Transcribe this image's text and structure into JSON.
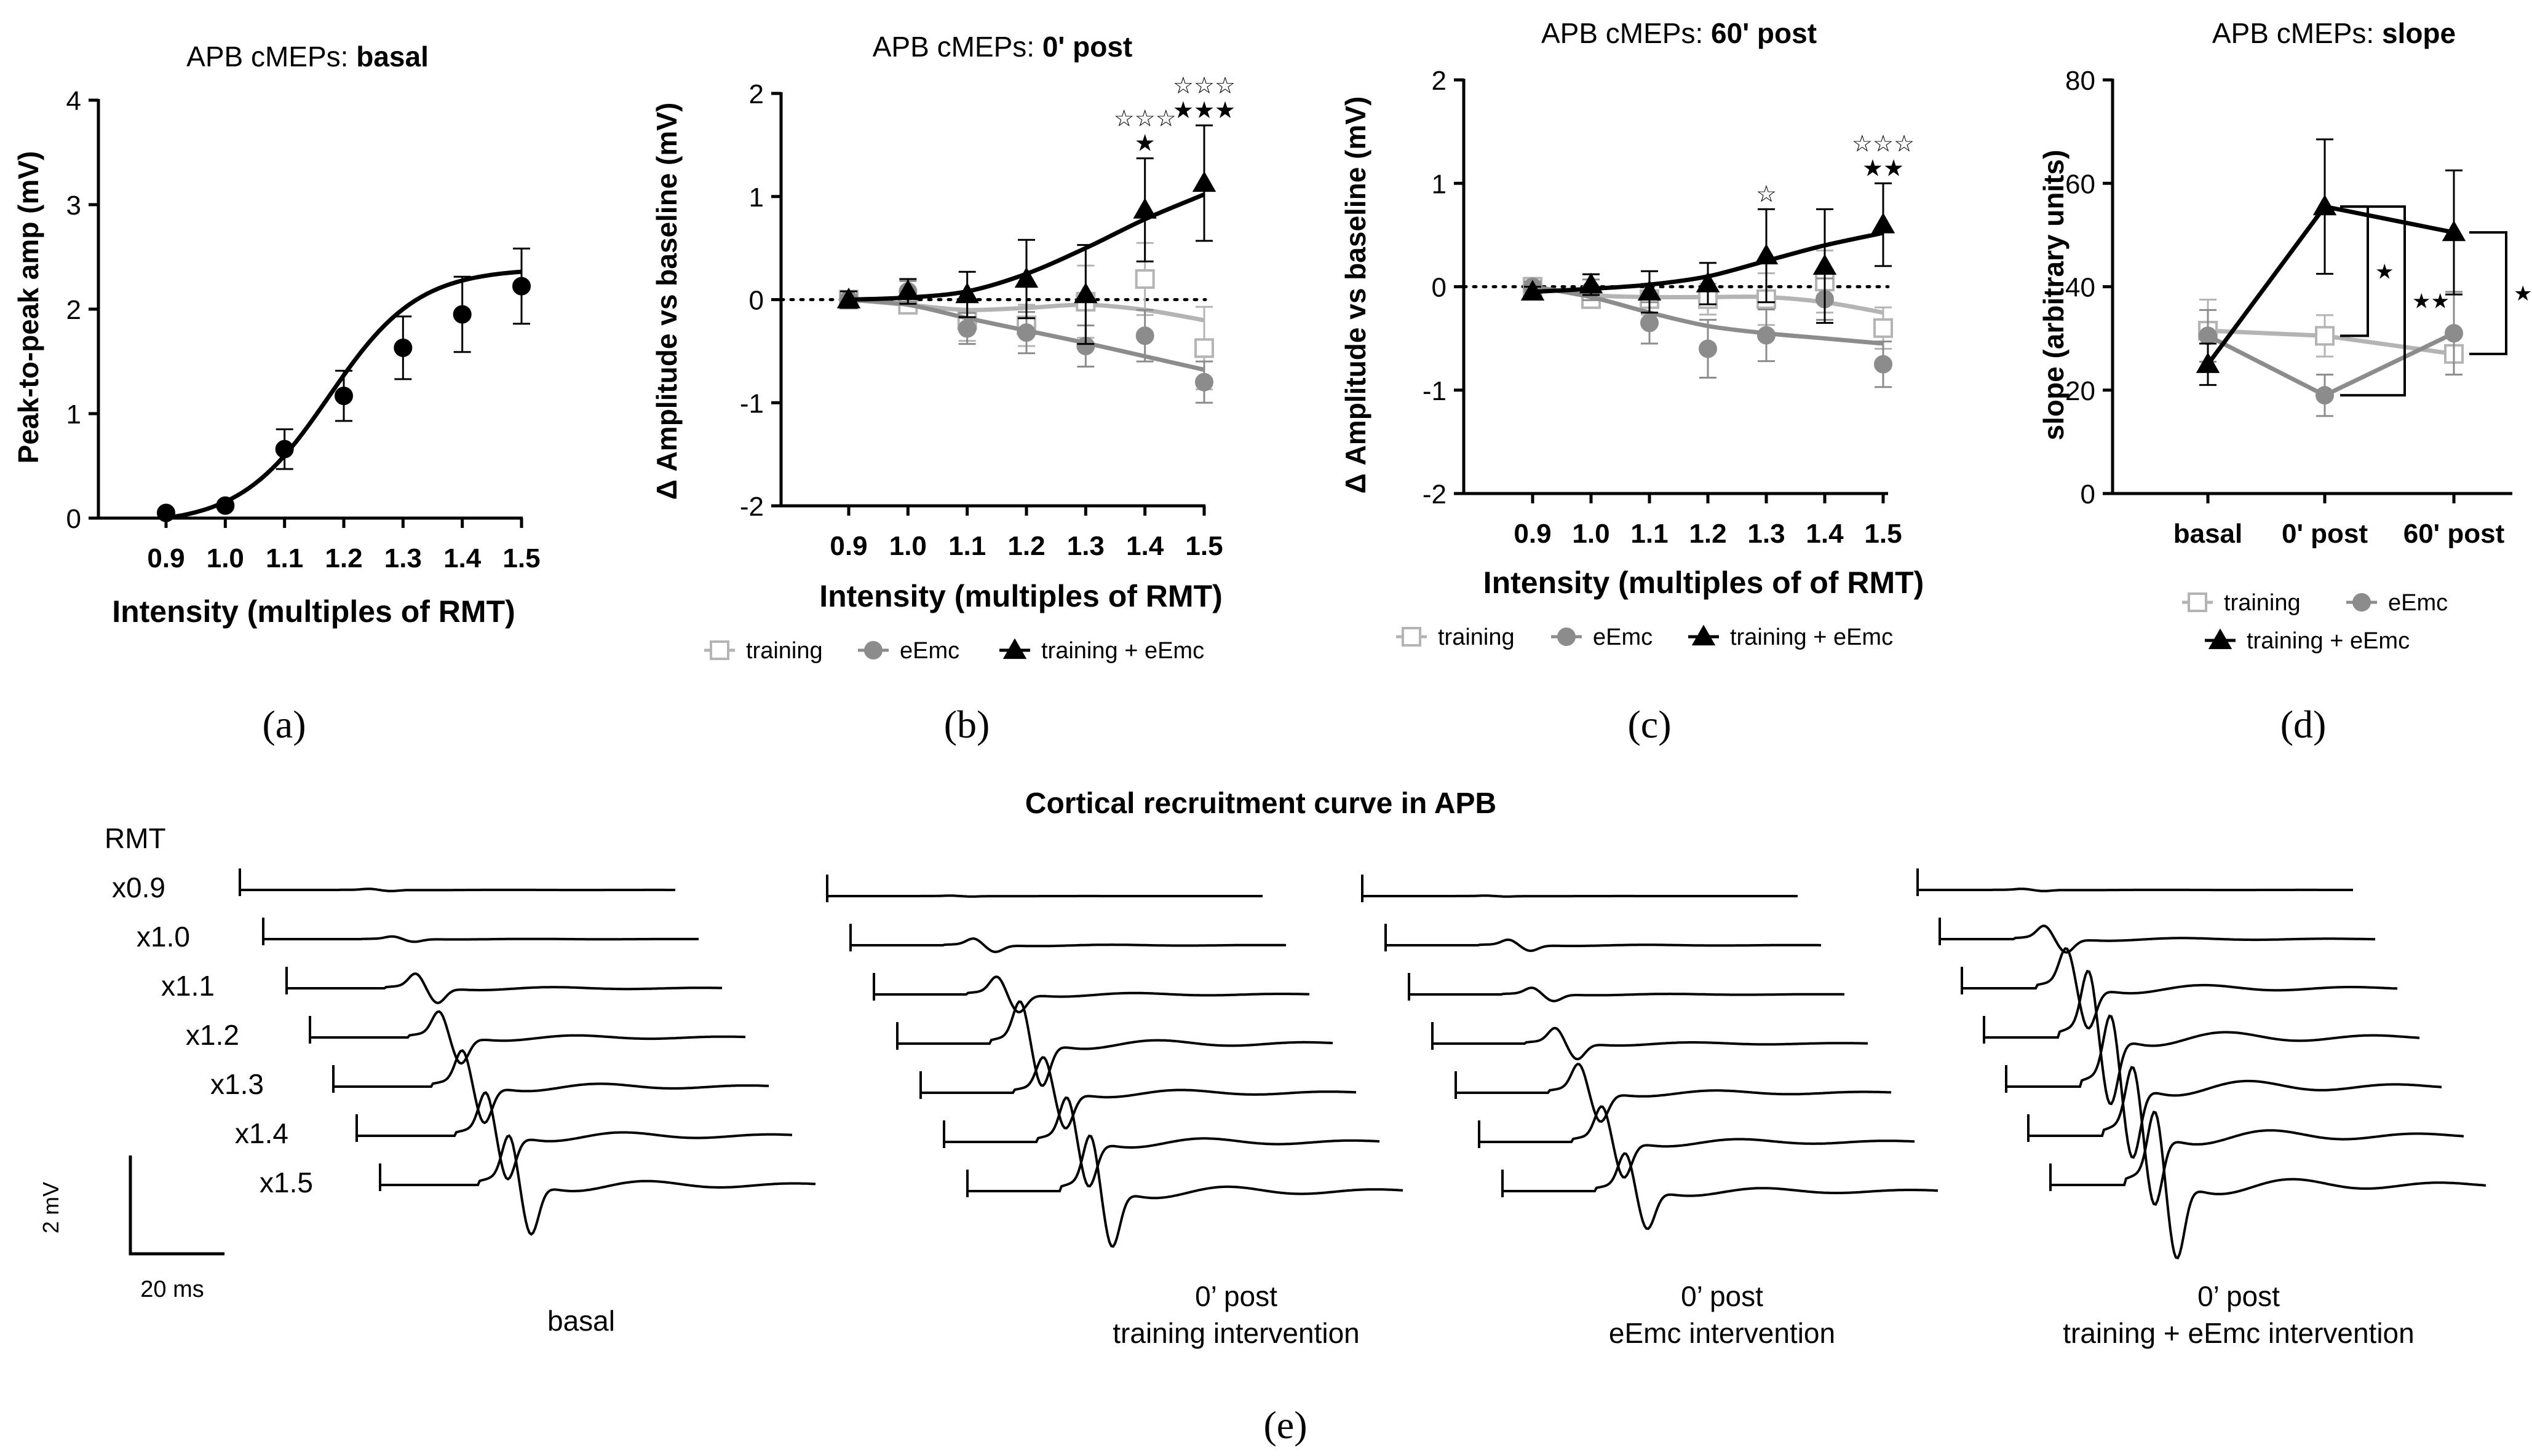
{
  "panels": {
    "a": {
      "label": "(a)",
      "title_prefix": "APB cMEPs: ",
      "title_bold": "basal",
      "xlabel": "Intensity (multiples of RMT)",
      "ylabel": "Peak-to-peak amp (mV)"
    },
    "b": {
      "label": "(b)",
      "title_prefix": "APB cMEPs: ",
      "title_bold": "0' post",
      "xlabel": "Intensity (multiples of RMT)",
      "ylabel": "Δ Amplitude vs baseline (mV)"
    },
    "c": {
      "label": "(c)",
      "title_prefix": "APB cMEPs: ",
      "title_bold": "60' post",
      "xlabel": "Intensity (multiples of of RMT)",
      "ylabel": "Δ Amplitude vs baseline (mV)"
    },
    "d": {
      "label": "(d)",
      "title_prefix": "APB cMEPs: ",
      "title_bold": "slope",
      "xlabel": "",
      "ylabel": "slope (arbitrary units)"
    },
    "e": {
      "label": "(e)",
      "title": "Cortical recruitment curve in APB",
      "rmt_label": "RMT",
      "intensity_labels": [
        "x0.9",
        "x1.0",
        "x1.1",
        "x1.2",
        "x1.3",
        "x1.4",
        "x1.5"
      ],
      "scale_v": "2 mV",
      "scale_t": "20 ms",
      "group_captions": [
        [
          "basal"
        ],
        [
          "0’ post",
          "training intervention"
        ],
        [
          "0’ post",
          "eEmc intervention"
        ],
        [
          "0’ post",
          "training + eEmc intervention"
        ]
      ],
      "group_peak_amplitudes_mV": [
        [
          0.05,
          0.12,
          0.66,
          1.17,
          1.63,
          1.95,
          2.22
        ],
        [
          0.02,
          0.3,
          0.8,
          1.9,
          1.6,
          2.0,
          2.5
        ],
        [
          0.02,
          0.25,
          0.3,
          0.7,
          1.3,
          1.6,
          1.7
        ],
        [
          0.05,
          0.6,
          1.8,
          3.0,
          3.2,
          3.1,
          3.3
        ]
      ]
    }
  },
  "chart_data": [
    {
      "id": "a",
      "type": "line",
      "x": [
        0.9,
        1.0,
        1.1,
        1.2,
        1.3,
        1.4,
        1.5
      ],
      "xtick_labels": [
        "0.9",
        "1.0",
        "1.1",
        "1.2",
        "1.3",
        "1.4",
        "1.5"
      ],
      "series": [
        {
          "marker": "filled-circle",
          "color": "#000000",
          "values": [
            0.05,
            0.12,
            0.66,
            1.17,
            1.63,
            1.95,
            2.22
          ],
          "errors": [
            0.0,
            0.0,
            0.19,
            0.24,
            0.3,
            0.36,
            0.36
          ]
        }
      ],
      "ylim": [
        0,
        4
      ],
      "yticks": [
        0,
        1,
        2,
        3,
        4
      ],
      "grid": false
    },
    {
      "id": "b",
      "type": "line",
      "x": [
        0.9,
        1.0,
        1.1,
        1.2,
        1.3,
        1.4,
        1.5
      ],
      "xtick_labels": [
        "0.9",
        "1.0",
        "1.1",
        "1.2",
        "1.3",
        "1.4",
        "1.5"
      ],
      "series": [
        {
          "name": "training",
          "marker": "open-square",
          "color": "#b4b4b4",
          "values": [
            0.0,
            -0.05,
            -0.2,
            -0.25,
            -0.02,
            0.2,
            -0.47
          ],
          "errors": [
            0.05,
            0.08,
            0.2,
            0.2,
            0.35,
            0.35,
            0.4
          ],
          "fit": [
            0.0,
            -0.05,
            -0.1,
            -0.08,
            -0.05,
            -0.1,
            -0.2
          ]
        },
        {
          "name": "eEmc",
          "marker": "filled-circle",
          "color": "#8c8c8c",
          "values": [
            0.0,
            0.08,
            -0.28,
            -0.32,
            -0.45,
            -0.35,
            -0.8
          ],
          "errors": [
            0.05,
            0.1,
            0.15,
            0.2,
            0.2,
            0.25,
            0.2
          ],
          "fit": [
            0.0,
            -0.05,
            -0.18,
            -0.3,
            -0.42,
            -0.55,
            -0.68
          ]
        },
        {
          "name": "training + eEmc",
          "marker": "filled-triangle",
          "color": "#000000",
          "values": [
            0.0,
            0.08,
            0.05,
            0.2,
            0.05,
            0.87,
            1.13
          ],
          "errors": [
            0.08,
            0.12,
            0.22,
            0.38,
            0.48,
            0.5,
            0.56
          ],
          "fit": [
            0.0,
            0.02,
            0.08,
            0.25,
            0.5,
            0.78,
            1.02
          ]
        }
      ],
      "ylim": [
        -2,
        2
      ],
      "yticks": [
        -2,
        -1,
        0,
        1,
        2
      ],
      "baseline_dotted": 0,
      "annotations": [
        {
          "x": 1.4,
          "rows": [
            "☆☆☆",
            "★"
          ]
        },
        {
          "x": 1.5,
          "rows": [
            "☆☆☆",
            "★★★"
          ]
        }
      ],
      "legend": "bottom",
      "grid": false
    },
    {
      "id": "c",
      "type": "line",
      "x": [
        0.9,
        1.0,
        1.1,
        1.2,
        1.3,
        1.4,
        1.5
      ],
      "xtick_labels": [
        "0.9",
        "1.0",
        "1.1",
        "1.2",
        "1.3",
        "1.4",
        "1.5"
      ],
      "series": [
        {
          "name": "training",
          "marker": "open-square",
          "color": "#b4b4b4",
          "values": [
            0.0,
            -0.12,
            -0.12,
            -0.12,
            -0.12,
            0.05,
            -0.4
          ],
          "errors": [
            0.05,
            0.08,
            0.15,
            0.15,
            0.25,
            0.3,
            0.2
          ],
          "fit": [
            0.0,
            -0.08,
            -0.1,
            -0.1,
            -0.1,
            -0.15,
            -0.25
          ]
        },
        {
          "name": "eEmc",
          "marker": "filled-circle",
          "color": "#8c8c8c",
          "values": [
            0.0,
            -0.03,
            -0.35,
            -0.6,
            -0.47,
            -0.12,
            -0.75
          ],
          "errors": [
            0.05,
            0.1,
            0.2,
            0.28,
            0.25,
            0.2,
            0.22
          ],
          "fit": [
            0.0,
            -0.1,
            -0.25,
            -0.38,
            -0.45,
            -0.5,
            -0.55
          ]
        },
        {
          "name": "training + eEmc",
          "marker": "filled-triangle",
          "color": "#000000",
          "values": [
            -0.05,
            0.02,
            -0.05,
            0.03,
            0.3,
            0.2,
            0.6
          ],
          "errors": [
            0.05,
            0.1,
            0.2,
            0.2,
            0.45,
            0.55,
            0.4
          ],
          "fit": [
            -0.05,
            -0.02,
            0.02,
            0.1,
            0.25,
            0.4,
            0.52
          ]
        }
      ],
      "ylim": [
        -2,
        2
      ],
      "yticks": [
        -2,
        -1,
        0,
        1,
        2
      ],
      "baseline_dotted": 0,
      "annotations": [
        {
          "x": 1.3,
          "rows": [
            "☆"
          ]
        },
        {
          "x": 1.5,
          "rows": [
            "☆☆☆",
            "★★"
          ]
        }
      ],
      "legend": "bottom",
      "grid": false
    },
    {
      "id": "d",
      "type": "line",
      "categories": [
        "basal",
        "0' post",
        "60' post"
      ],
      "series": [
        {
          "name": "training",
          "marker": "open-square",
          "color": "#b4b4b4",
          "values": [
            31.5,
            30.5,
            27
          ],
          "errors": [
            6,
            4,
            4
          ]
        },
        {
          "name": "eEmc",
          "marker": "filled-circle",
          "color": "#8c8c8c",
          "values": [
            30.5,
            19,
            31
          ],
          "errors": [
            5,
            4,
            8
          ]
        },
        {
          "name": "training + eEmc",
          "marker": "filled-triangle",
          "color": "#000000",
          "values": [
            25,
            55.5,
            50.5
          ],
          "errors": [
            4,
            13,
            12
          ]
        }
      ],
      "ylim": [
        0,
        80
      ],
      "yticks": [
        0,
        20,
        40,
        60,
        80
      ],
      "brackets": [
        {
          "category": "0' post",
          "from": "training + eEmc",
          "to": "training",
          "label": "★"
        },
        {
          "category": "0' post",
          "from": "training + eEmc",
          "to": "eEmc",
          "label": "★★"
        },
        {
          "category": "60' post",
          "from": "training + eEmc",
          "to": "training",
          "label": "★"
        }
      ],
      "legend": "bottom",
      "grid": false
    }
  ]
}
